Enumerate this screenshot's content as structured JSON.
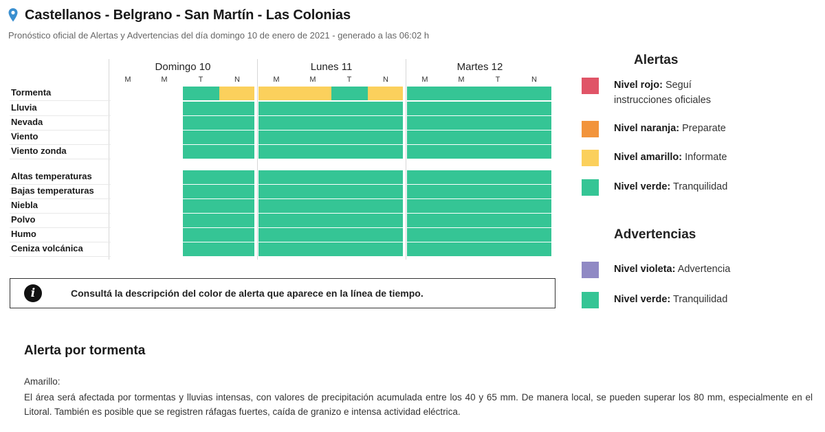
{
  "header": {
    "title": "Castellanos - Belgrano - San Martín - Las Colonias",
    "subtitle": "Pronóstico oficial de Alertas y Advertencias del día domingo 10 de enero de 2021 - generado a las 06:02 h"
  },
  "days": [
    {
      "label": "Domingo 10",
      "slots": [
        "M",
        "M",
        "T",
        "N"
      ]
    },
    {
      "label": "Lunes 11",
      "slots": [
        "M",
        "M",
        "T",
        "N"
      ]
    },
    {
      "label": "Martes 12",
      "slots": [
        "M",
        "M",
        "T",
        "N"
      ]
    }
  ],
  "colors": {
    "rojo": "#e05467",
    "naranja": "#f2943c",
    "amarillo": "#fbd05c",
    "verde": "#35c595",
    "violeta": "#9089c4"
  },
  "rows": [
    {
      "label": "Tormenta",
      "levels": [
        "none",
        "none",
        "verde",
        "amarillo",
        "amarillo",
        "amarillo",
        "verde",
        "amarillo",
        "verde",
        "verde",
        "verde",
        "verde"
      ]
    },
    {
      "label": "Lluvia",
      "levels": [
        "none",
        "none",
        "verde",
        "verde",
        "verde",
        "verde",
        "verde",
        "verde",
        "verde",
        "verde",
        "verde",
        "verde"
      ]
    },
    {
      "label": "Nevada",
      "levels": [
        "none",
        "none",
        "verde",
        "verde",
        "verde",
        "verde",
        "verde",
        "verde",
        "verde",
        "verde",
        "verde",
        "verde"
      ]
    },
    {
      "label": "Viento",
      "levels": [
        "none",
        "none",
        "verde",
        "verde",
        "verde",
        "verde",
        "verde",
        "verde",
        "verde",
        "verde",
        "verde",
        "verde"
      ]
    },
    {
      "label": "Viento zonda",
      "levels": [
        "none",
        "none",
        "verde",
        "verde",
        "verde",
        "verde",
        "verde",
        "verde",
        "verde",
        "verde",
        "verde",
        "verde"
      ]
    },
    {
      "label": "Altas temperaturas",
      "levels": [
        "none",
        "none",
        "verde",
        "verde",
        "verde",
        "verde",
        "verde",
        "verde",
        "verde",
        "verde",
        "verde",
        "verde"
      ]
    },
    {
      "label": "Bajas temperaturas",
      "levels": [
        "none",
        "none",
        "verde",
        "verde",
        "verde",
        "verde",
        "verde",
        "verde",
        "verde",
        "verde",
        "verde",
        "verde"
      ]
    },
    {
      "label": "Niebla",
      "levels": [
        "none",
        "none",
        "verde",
        "verde",
        "verde",
        "verde",
        "verde",
        "verde",
        "verde",
        "verde",
        "verde",
        "verde"
      ]
    },
    {
      "label": "Polvo",
      "levels": [
        "none",
        "none",
        "verde",
        "verde",
        "verde",
        "verde",
        "verde",
        "verde",
        "verde",
        "verde",
        "verde",
        "verde"
      ]
    },
    {
      "label": "Humo",
      "levels": [
        "none",
        "none",
        "verde",
        "verde",
        "verde",
        "verde",
        "verde",
        "verde",
        "verde",
        "verde",
        "verde",
        "verde"
      ]
    },
    {
      "label": "Ceniza volcánica",
      "levels": [
        "none",
        "none",
        "verde",
        "verde",
        "verde",
        "verde",
        "verde",
        "verde",
        "verde",
        "verde",
        "verde",
        "verde"
      ]
    }
  ],
  "info": {
    "icon": "info-icon",
    "text": "Consultá la descripción del color de alerta que aparece en la línea de tiempo."
  },
  "legend": {
    "alertas_title": "Alertas",
    "alertas": [
      {
        "name": "Nivel rojo:",
        "desc": "Seguí instrucciones oficiales",
        "color": "#e05467"
      },
      {
        "name": "Nivel naranja:",
        "desc": "Preparate",
        "color": "#f2943c"
      },
      {
        "name": "Nivel amarillo:",
        "desc": "Informate",
        "color": "#fbd05c"
      },
      {
        "name": "Nivel verde:",
        "desc": "Tranquilidad",
        "color": "#35c595"
      }
    ],
    "advertencias_title": "Advertencias",
    "advertencias": [
      {
        "name": "Nivel violeta:",
        "desc": "Advertencia",
        "color": "#9089c4"
      },
      {
        "name": "Nivel verde:",
        "desc": "Tranquilidad",
        "color": "#35c595"
      }
    ]
  },
  "alert_detail": {
    "title": "Alerta por tormenta",
    "level": "Amarillo:",
    "description": "El área será afectada por tormentas y lluvias intensas, con valores de precipitación acumulada entre los 40 y 65 mm. De manera local, se pueden superar los 80 mm, especialmente en el Litoral. También es posible que se registren ráfagas fuertes, caída de granizo e intensa actividad eléctrica."
  }
}
